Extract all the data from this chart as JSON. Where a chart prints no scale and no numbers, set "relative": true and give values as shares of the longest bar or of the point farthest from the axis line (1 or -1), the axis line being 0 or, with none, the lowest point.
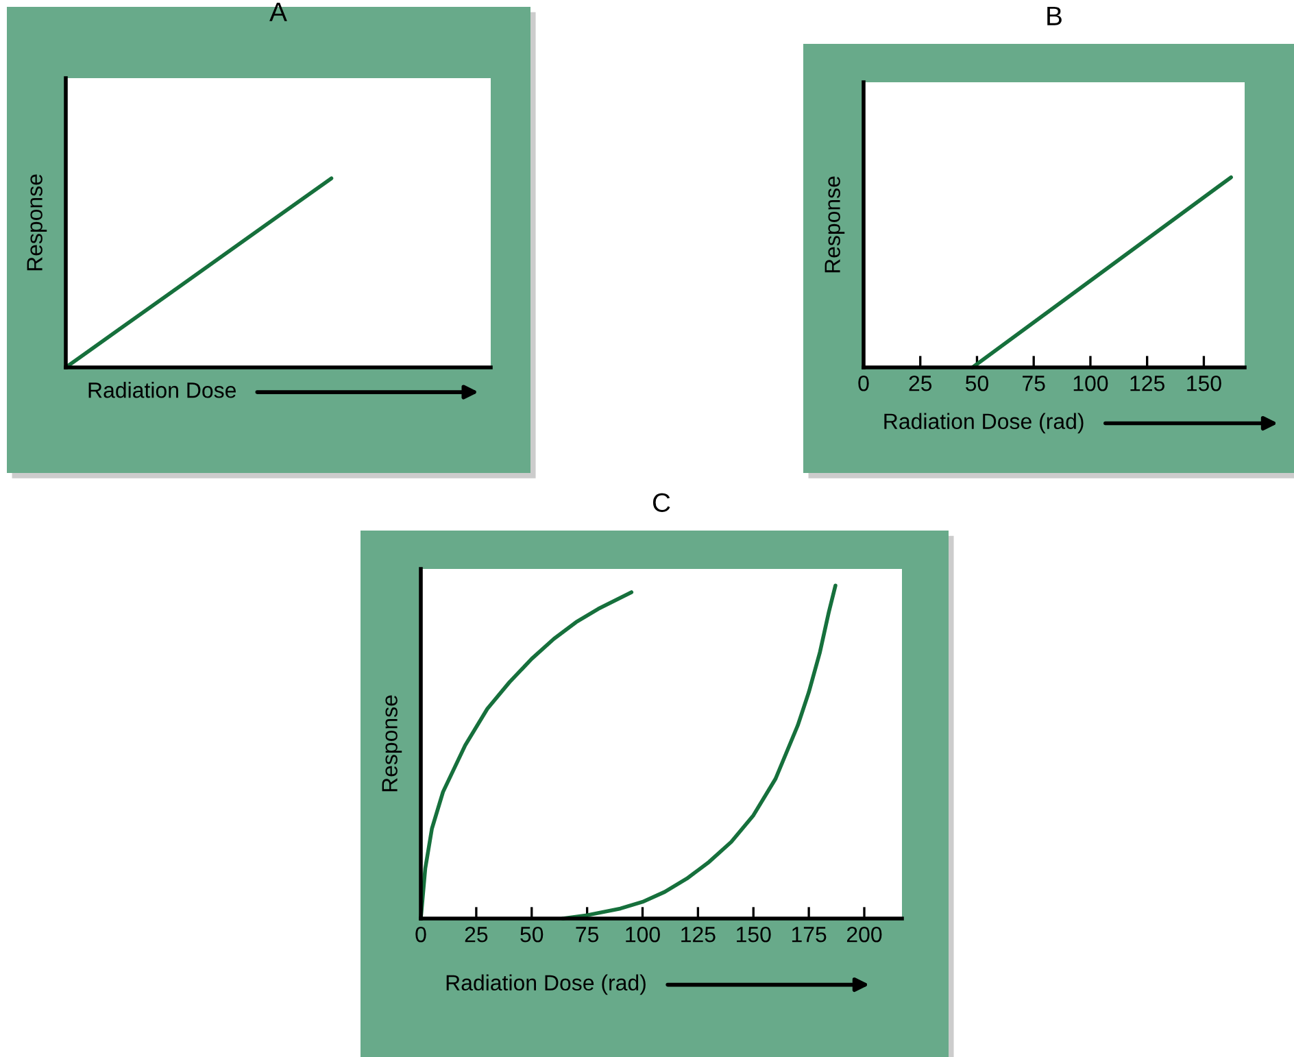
{
  "chart_data": [
    {
      "type": "line",
      "title": "A",
      "xlabel": "Radiation Dose",
      "ylabel": "Response",
      "relative": true,
      "tick_labels": false,
      "categories": [
        null,
        null,
        null,
        null,
        null,
        null,
        null,
        null
      ],
      "series": [
        {
          "color": "#16703c",
          "values": [
            0,
            0.2,
            0.4,
            0.6,
            0.8,
            1,
            null,
            null
          ]
        }
      ]
    },
    {
      "type": "line",
      "title": "B",
      "xlabel": "Radiation Dose (rad)",
      "ylabel": "Response",
      "relative": true,
      "tick_labels": "x",
      "xlim": [
        0,
        168
      ],
      "xticks": [
        0,
        25,
        50,
        75,
        100,
        125,
        150
      ],
      "series": [
        {
          "color": "#16703c",
          "x": [
            48,
            162
          ],
          "values": [
            0,
            1
          ]
        }
      ]
    },
    {
      "type": "line",
      "title": "C",
      "xlabel": "Radiation Dose (rad)",
      "ylabel": "Response",
      "relative": true,
      "tick_labels": "x",
      "xlim": [
        0,
        217
      ],
      "xticks": [
        0,
        25,
        50,
        75,
        100,
        125,
        150,
        175,
        200
      ],
      "series": [
        {
          "color": "#16703c",
          "x": [
            0,
            2,
            5,
            10,
            20,
            30,
            40,
            50,
            60,
            70,
            80,
            95
          ],
          "values": [
            0,
            0.15,
            0.27,
            0.38,
            0.52,
            0.63,
            0.71,
            0.78,
            0.84,
            0.89,
            0.93,
            0.98
          ]
        },
        {
          "color": "#16703c",
          "x": [
            64,
            75,
            90,
            100,
            110,
            120,
            130,
            140,
            150,
            160,
            170,
            175,
            180,
            184,
            187
          ],
          "values": [
            0,
            0.01,
            0.03,
            0.05,
            0.08,
            0.12,
            0.17,
            0.23,
            0.31,
            0.42,
            0.58,
            0.68,
            0.8,
            0.92,
            1.0
          ]
        }
      ]
    }
  ]
}
